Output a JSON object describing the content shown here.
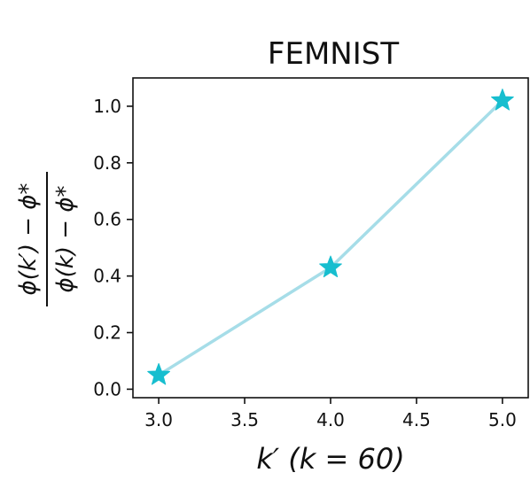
{
  "chart_data": {
    "type": "line",
    "title": "FEMNIST",
    "xlabel": "k′ (k = 60)",
    "ylabel": {
      "numerator": "ϕ(k′) − ϕ*",
      "denominator": "ϕ(k) − ϕ*"
    },
    "x": [
      3.0,
      4.0,
      5.0
    ],
    "series": [
      {
        "values": [
          0.05,
          0.43,
          1.02
        ],
        "color": "#17becf",
        "line_color": "#a6dde8",
        "marker": "star"
      }
    ],
    "xlim": [
      2.85,
      5.15
    ],
    "ylim": [
      -0.03,
      1.1
    ],
    "xticks": [
      3.0,
      3.5,
      4.0,
      4.5,
      5.0
    ],
    "xtick_labels": [
      "3.0",
      "3.5",
      "4.0",
      "4.5",
      "5.0"
    ],
    "yticks": [
      0.0,
      0.2,
      0.4,
      0.6,
      0.8,
      1.0
    ],
    "ytick_labels": [
      "0.0",
      "0.2",
      "0.4",
      "0.6",
      "0.8",
      "1.0"
    ],
    "grid": false,
    "legend": "none"
  }
}
